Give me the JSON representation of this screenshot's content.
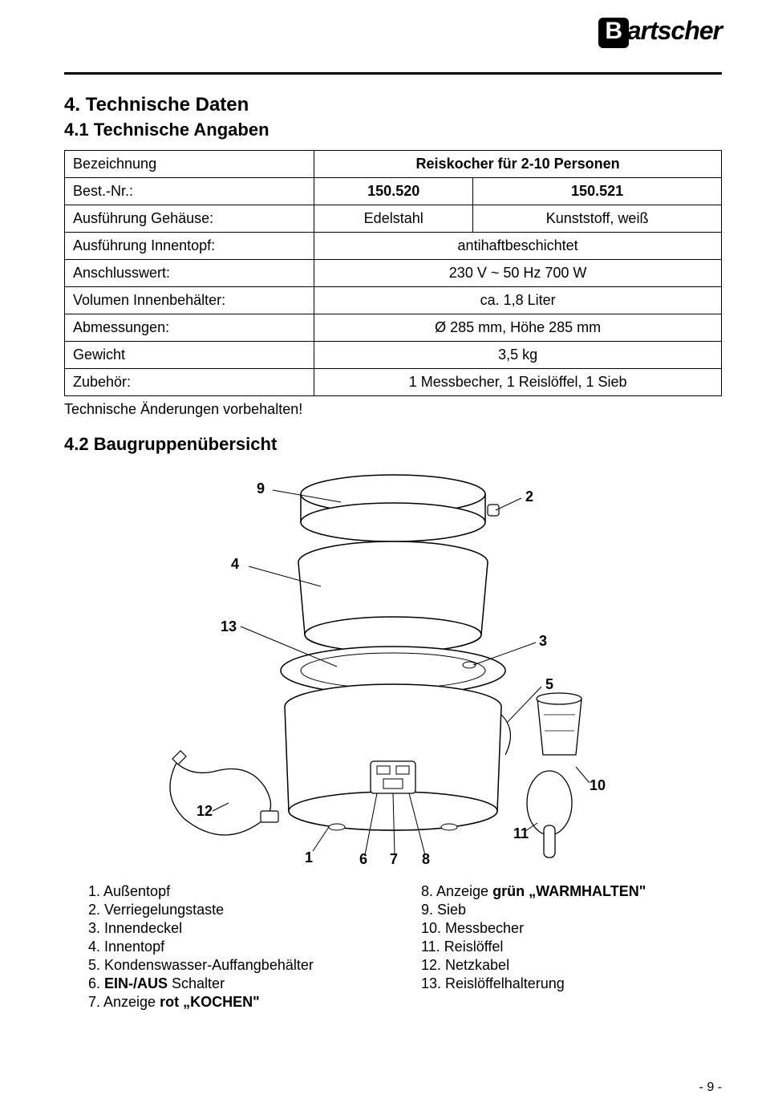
{
  "logo_text": "artscher",
  "section_title": "4. Technische Daten",
  "subsection_title": "4.1 Technische Angaben",
  "table": {
    "rows": [
      {
        "label": "Bezeichnung",
        "val_merged": "Reiskocher für 2-10 Personen",
        "val_bold": true,
        "val_center": true
      },
      {
        "label": "Best.-Nr.:",
        "val_a": "150.520",
        "val_b": "150.521",
        "val_bold": true,
        "val_center": true
      },
      {
        "label": "Ausführung Gehäuse:",
        "val_a": "Edelstahl",
        "val_b": "Kunststoff, weiß",
        "val_center": true
      },
      {
        "label": "Ausführung Innentopf:",
        "val_merged": "antihaftbeschichtet",
        "val_center": true
      },
      {
        "label": "Anschlusswert:",
        "val_merged": "230 V   ~ 50 Hz   700 W",
        "val_center": true
      },
      {
        "label": "Volumen Innenbehälter:",
        "val_merged": "ca. 1,8 Liter",
        "val_center": true
      },
      {
        "label": "Abmessungen:",
        "val_merged": "Ø 285 mm, Höhe 285 mm",
        "val_center": true
      },
      {
        "label": "Gewicht",
        "val_merged": "3,5 kg",
        "val_center": true
      },
      {
        "label": "Zubehör:",
        "val_merged": "1 Messbecher, 1 Reislöffel, 1 Sieb",
        "val_center": true
      }
    ]
  },
  "note": "Technische Änderungen vorbehalten!",
  "subsection2_title": "4.2 Baugruppenübersicht",
  "diagram_labels": {
    "n1": "1",
    "n2": "2",
    "n3": "3",
    "n4": "4",
    "n5": "5",
    "n6": "6",
    "n7": "7",
    "n8": "8",
    "n9": "9",
    "n10": "10",
    "n11": "11",
    "n12": "12",
    "n13": "13"
  },
  "legend_left": [
    "1.  Außentopf",
    "2.  Verriegelungstaste",
    "3.  Innendeckel",
    "4.  Innentopf",
    "5.  Kondenswasser-Auffangbehälter",
    "6.  EIN-/AUS Schalter",
    "7.  Anzeige rot „KOCHEN\""
  ],
  "legend_left_bold_idx": 5,
  "legend_right": [
    "  8.  Anzeige grün „WARMHALTEN\"",
    "  9.  Sieb",
    "10.  Messbecher",
    "11.  Reislöffel",
    "12.  Netzkabel",
    "13.  Reislöffelhalterung"
  ],
  "legend_right_bold_idx": 0,
  "page_number": "- 9 -"
}
